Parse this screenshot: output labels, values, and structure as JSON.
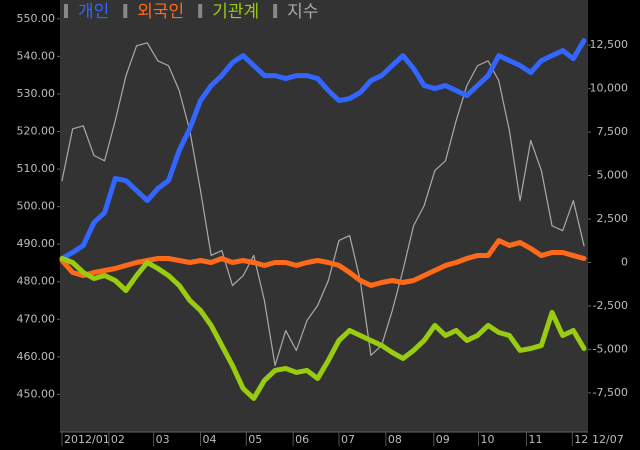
{
  "chart_data": {
    "type": "line",
    "legend": "top-left",
    "xlim": [
      0,
      49
    ],
    "xticks": [
      {
        "value": 0,
        "label": "2012/01"
      },
      {
        "value": 4.4,
        "label": "02"
      },
      {
        "value": 8.6,
        "label": "03"
      },
      {
        "value": 13,
        "label": "04"
      },
      {
        "value": 17.3,
        "label": "05"
      },
      {
        "value": 21.7,
        "label": "06"
      },
      {
        "value": 26,
        "label": "07"
      },
      {
        "value": 30.4,
        "label": "08"
      },
      {
        "value": 34.9,
        "label": "09"
      },
      {
        "value": 39.1,
        "label": "10"
      },
      {
        "value": 43.6,
        "label": "11"
      },
      {
        "value": 47.9,
        "label": "12"
      }
    ],
    "x_end_label": "12/07",
    "ylim": [
      440,
      555
    ],
    "yticks": [
      {
        "value": 450,
        "label": "450.00"
      },
      {
        "value": 460,
        "label": "460.00"
      },
      {
        "value": 470,
        "label": "470.00"
      },
      {
        "value": 480,
        "label": "480.00"
      },
      {
        "value": 490,
        "label": "490.00"
      },
      {
        "value": 500,
        "label": "500.00"
      },
      {
        "value": 510,
        "label": "510.00"
      },
      {
        "value": 520,
        "label": "520.00"
      },
      {
        "value": 530,
        "label": "530.00"
      },
      {
        "value": 540,
        "label": "540.00"
      },
      {
        "value": 550,
        "label": "550.00"
      }
    ],
    "y2lim": [
      -9750,
      15100
    ],
    "y2ticks": [
      {
        "value": -7500,
        "label": "-7,500"
      },
      {
        "value": -5000,
        "label": "-5,000"
      },
      {
        "value": -2500,
        "label": "-2,500"
      },
      0,
      {
        "value": 2500,
        "label": "2,500"
      },
      {
        "value": 5000,
        "label": "5,000"
      },
      {
        "value": 7500,
        "label": "7,500"
      },
      {
        "value": 10000,
        "label": "10,000"
      },
      {
        "value": 12500,
        "label": "12,500"
      }
    ],
    "series": [
      {
        "name": "개인",
        "color": "#3366ff",
        "axis": "y2",
        "width": 5,
        "values": [
          230,
          575,
          980,
          2300,
          2875,
          4830,
          4715,
          4140,
          3565,
          4255,
          4715,
          6440,
          7705,
          9315,
          10180,
          10750,
          11500,
          11900,
          11330,
          10750,
          10750,
          10580,
          10750,
          10750,
          10580,
          9890,
          9315,
          9430,
          9775,
          10465,
          10750,
          11330,
          11900,
          11155,
          10180,
          10005,
          10180,
          9890,
          9600,
          10180,
          10750,
          11900,
          11615,
          11330,
          10925,
          11615,
          11900,
          12190,
          11730,
          12765
        ]
      },
      {
        "name": "외국인",
        "color": "#ff6a1a",
        "axis": "y2",
        "width": 5,
        "values": [
          115,
          -575,
          -750,
          -575,
          -460,
          -345,
          -170,
          0,
          115,
          230,
          230,
          115,
          0,
          115,
          0,
          230,
          0,
          115,
          0,
          -170,
          0,
          0,
          -170,
          0,
          115,
          0,
          -170,
          -575,
          -1035,
          -1320,
          -1150,
          -1035,
          -1150,
          -1035,
          -750,
          -460,
          -170,
          0,
          230,
          400,
          400,
          1265,
          980,
          1150,
          805,
          400,
          575,
          575,
          400,
          230
        ]
      },
      {
        "name": "기관계",
        "color": "#99cc11",
        "axis": "y2",
        "width": 5,
        "values": [
          230,
          0,
          -575,
          -920,
          -750,
          -1035,
          -1610,
          -750,
          0,
          -345,
          -750,
          -1320,
          -2185,
          -2760,
          -3620,
          -4770,
          -5920,
          -7245,
          -7820,
          -6785,
          -6210,
          -6095,
          -6325,
          -6210,
          -6670,
          -5635,
          -4485,
          -3910,
          -4200,
          -4485,
          -4770,
          -5175,
          -5520,
          -5060,
          -4485,
          -3620,
          -4200,
          -3910,
          -4485,
          -4200,
          -3620,
          -4025,
          -4200,
          -5060,
          -4945,
          -4770,
          -2875,
          -4200,
          -3910,
          -4945
        ]
      },
      {
        "name": "지수",
        "color": "#aaaaaa",
        "axis": "y",
        "width": 1.2,
        "values": [
          506.9,
          520.7,
          521.5,
          513.6,
          512.2,
          522.9,
          534.8,
          542.8,
          543.6,
          538.8,
          537.5,
          530.9,
          520.2,
          504.3,
          487.0,
          488.3,
          479.0,
          481.6,
          487.0,
          475.0,
          457.7,
          467.0,
          461.7,
          469.7,
          473.7,
          480.3,
          491.0,
          492.3,
          480.3,
          460.4,
          463.0,
          472.3,
          483.0,
          494.9,
          500.3,
          509.6,
          512.2,
          522.9,
          532.2,
          537.5,
          538.8,
          533.5,
          520.2,
          501.6,
          517.6,
          509.6,
          494.9,
          493.6,
          501.6,
          489.6
        ]
      }
    ]
  }
}
